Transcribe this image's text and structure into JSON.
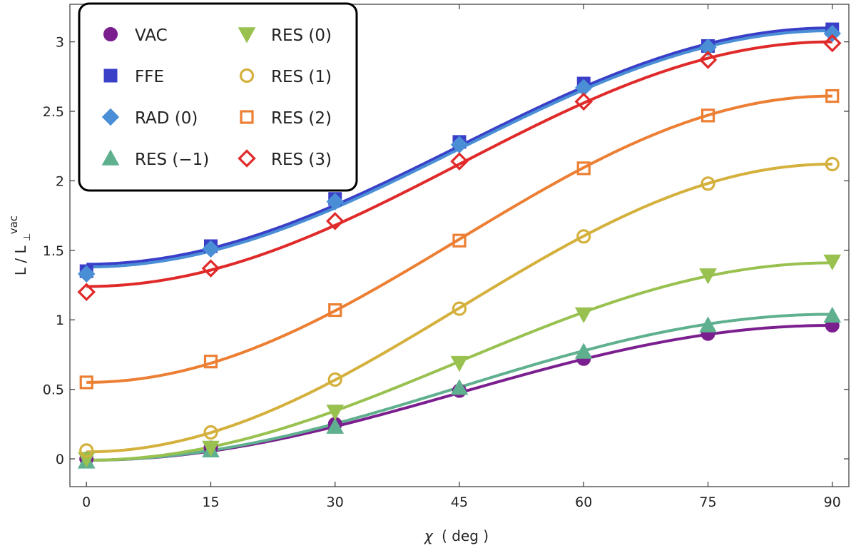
{
  "chart_data": {
    "type": "line",
    "title": "",
    "xlabel_symbol": "χ",
    "xlabel_unit": "( deg )",
    "ylabel_main": "L / L",
    "ylabel_sub": "⊥",
    "ylabel_sup": "vac",
    "xlim": [
      -2,
      92
    ],
    "ylim": [
      -0.2,
      3.27
    ],
    "xticks": [
      0,
      15,
      30,
      45,
      60,
      75,
      90
    ],
    "yticks": [
      0,
      0.5,
      1,
      1.5,
      2,
      2.5,
      3
    ],
    "ytick_labels": [
      "0",
      "0.5",
      "1",
      "1.5",
      "2",
      "2.5",
      "3"
    ],
    "grid": false,
    "legend_position": "top-left",
    "x": [
      0,
      15,
      30,
      45,
      60,
      75,
      90
    ],
    "series": [
      {
        "name": "VAC",
        "marker": "circle",
        "filled": true,
        "color": "#7b1f8f",
        "values": [
          0.0,
          0.08,
          0.25,
          0.49,
          0.72,
          0.9,
          0.96
        ],
        "fit": {
          "a": -0.01,
          "b": 0.97
        }
      },
      {
        "name": "FFE",
        "marker": "square",
        "filled": true,
        "color": "#3a3fc8",
        "values": [
          1.35,
          1.53,
          1.87,
          2.28,
          2.7,
          2.97,
          3.09
        ],
        "fit": {
          "a": 1.4,
          "b": 1.7
        }
      },
      {
        "name": "RAD (0)",
        "marker": "diamond",
        "filled": true,
        "color": "#4a8fd6",
        "values": [
          1.33,
          1.51,
          1.85,
          2.26,
          2.67,
          2.96,
          3.06
        ],
        "fit": {
          "a": 1.38,
          "b": 1.7
        }
      },
      {
        "name": "RES (−1)",
        "marker": "triangle-up",
        "filled": true,
        "color": "#5fb08f",
        "values": [
          -0.02,
          0.06,
          0.23,
          0.51,
          0.77,
          0.96,
          1.03
        ],
        "fit": {
          "a": -0.01,
          "b": 1.05
        }
      },
      {
        "name": "RES (0)",
        "marker": "triangle-down",
        "filled": true,
        "color": "#98c150",
        "values": [
          0.0,
          0.08,
          0.34,
          0.69,
          1.04,
          1.32,
          1.42
        ],
        "fit": {
          "a": -0.01,
          "b": 1.42
        }
      },
      {
        "name": "RES (1)",
        "marker": "circle",
        "filled": false,
        "color": "#d4b03c",
        "values": [
          0.06,
          0.19,
          0.57,
          1.08,
          1.6,
          1.98,
          2.12
        ],
        "fit": {
          "a": 0.05,
          "b": 2.07
        }
      },
      {
        "name": "RES (2)",
        "marker": "square",
        "filled": false,
        "color": "#ec7f33",
        "values": [
          0.55,
          0.7,
          1.07,
          1.57,
          2.09,
          2.47,
          2.61
        ],
        "fit": {
          "a": 0.55,
          "b": 2.06
        }
      },
      {
        "name": "RES (3)",
        "marker": "diamond",
        "filled": false,
        "color": "#e02a2a",
        "values": [
          1.2,
          1.37,
          1.71,
          2.14,
          2.57,
          2.87,
          2.99
        ],
        "fit": {
          "a": 1.24,
          "b": 1.76
        }
      }
    ]
  }
}
